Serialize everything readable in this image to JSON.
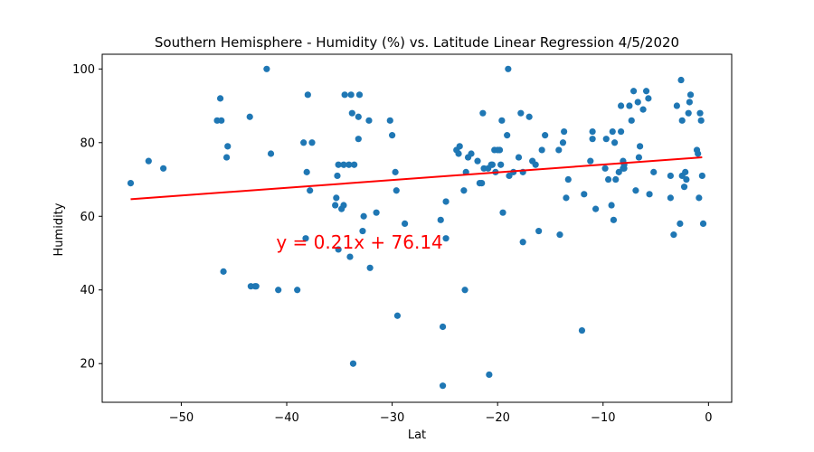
{
  "chart_data": {
    "type": "scatter",
    "title": "Southern Hemisphere - Humidity (%) vs. Latitude Linear Regression 4/5/2020",
    "xlabel": "Lat",
    "ylabel": "Humidity",
    "xlim": [
      -57.5,
      2.2
    ],
    "ylim": [
      9.5,
      104
    ],
    "xticks": [
      -50,
      -40,
      -30,
      -20,
      -10,
      0
    ],
    "yticks": [
      20,
      40,
      60,
      80,
      100
    ],
    "grid": false,
    "point_color": "#1f77b4",
    "line_color": "#ff0000",
    "annotation_color": "#ff0000",
    "regression": {
      "slope": 0.21,
      "intercept": 76.14,
      "x_range": [
        -54.8,
        -0.6
      ]
    },
    "annotation": {
      "text": "y = 0.21x + 76.14",
      "x": -41,
      "y": 53
    },
    "points": [
      [
        -54.8,
        69
      ],
      [
        -53.1,
        75
      ],
      [
        -51.7,
        73
      ],
      [
        -46.6,
        86
      ],
      [
        -46.3,
        92
      ],
      [
        -46.2,
        86
      ],
      [
        -46.0,
        45
      ],
      [
        -45.7,
        76
      ],
      [
        -45.6,
        79
      ],
      [
        -43.5,
        87
      ],
      [
        -43.4,
        41
      ],
      [
        -43.0,
        41
      ],
      [
        -42.9,
        41
      ],
      [
        -41.9,
        100
      ],
      [
        -41.5,
        77
      ],
      [
        -40.8,
        40
      ],
      [
        -39.0,
        40
      ],
      [
        -38.4,
        80
      ],
      [
        -38.2,
        54
      ],
      [
        -38.1,
        72
      ],
      [
        -38.0,
        93
      ],
      [
        -37.8,
        67
      ],
      [
        -37.6,
        80
      ],
      [
        -35.4,
        63
      ],
      [
        -35.3,
        65
      ],
      [
        -35.2,
        71
      ],
      [
        -35.1,
        74
      ],
      [
        -35.1,
        51
      ],
      [
        -34.8,
        62
      ],
      [
        -34.6,
        74
      ],
      [
        -34.5,
        93
      ],
      [
        -34.6,
        63
      ],
      [
        -34.1,
        74
      ],
      [
        -34.0,
        49
      ],
      [
        -33.9,
        93
      ],
      [
        -33.8,
        88
      ],
      [
        -33.7,
        20
      ],
      [
        -33.6,
        74
      ],
      [
        -33.2,
        87
      ],
      [
        -33.2,
        81
      ],
      [
        -33.1,
        93
      ],
      [
        -32.8,
        56
      ],
      [
        -32.7,
        60
      ],
      [
        -32.2,
        86
      ],
      [
        -32.1,
        46
      ],
      [
        -31.5,
        61
      ],
      [
        -30.2,
        86
      ],
      [
        -30.0,
        82
      ],
      [
        -29.7,
        72
      ],
      [
        -29.6,
        67
      ],
      [
        -29.5,
        33
      ],
      [
        -28.8,
        58
      ],
      [
        -25.4,
        59
      ],
      [
        -25.2,
        14
      ],
      [
        -25.2,
        30
      ],
      [
        -24.9,
        64
      ],
      [
        -24.9,
        54
      ],
      [
        -23.9,
        78
      ],
      [
        -23.7,
        77
      ],
      [
        -23.6,
        79
      ],
      [
        -23.2,
        67
      ],
      [
        -23.1,
        40
      ],
      [
        -23.0,
        72
      ],
      [
        -22.8,
        76
      ],
      [
        -22.5,
        77
      ],
      [
        -21.9,
        75
      ],
      [
        -21.7,
        69
      ],
      [
        -21.5,
        69
      ],
      [
        -21.4,
        88
      ],
      [
        -21.3,
        73
      ],
      [
        -20.9,
        73
      ],
      [
        -20.8,
        17
      ],
      [
        -20.6,
        74
      ],
      [
        -20.5,
        74
      ],
      [
        -20.3,
        78
      ],
      [
        -20.2,
        72
      ],
      [
        -20.0,
        78
      ],
      [
        -19.8,
        78
      ],
      [
        -19.7,
        74
      ],
      [
        -19.6,
        86
      ],
      [
        -19.5,
        61
      ],
      [
        -19.1,
        82
      ],
      [
        -19.0,
        100
      ],
      [
        -18.9,
        71
      ],
      [
        -18.5,
        72
      ],
      [
        -18.0,
        76
      ],
      [
        -17.8,
        88
      ],
      [
        -17.6,
        53
      ],
      [
        -17.6,
        72
      ],
      [
        -17.0,
        87
      ],
      [
        -16.7,
        75
      ],
      [
        -16.4,
        74
      ],
      [
        -16.1,
        56
      ],
      [
        -15.8,
        78
      ],
      [
        -15.5,
        82
      ],
      [
        -14.2,
        78
      ],
      [
        -14.1,
        55
      ],
      [
        -13.8,
        80
      ],
      [
        -13.7,
        83
      ],
      [
        -13.5,
        65
      ],
      [
        -13.3,
        70
      ],
      [
        -12.0,
        29
      ],
      [
        -11.8,
        66
      ],
      [
        -11.2,
        75
      ],
      [
        -11.0,
        81
      ],
      [
        -11.0,
        83
      ],
      [
        -10.7,
        62
      ],
      [
        -9.8,
        73
      ],
      [
        -9.7,
        81
      ],
      [
        -9.5,
        70
      ],
      [
        -9.2,
        63
      ],
      [
        -9.1,
        83
      ],
      [
        -9.0,
        59
      ],
      [
        -8.9,
        80
      ],
      [
        -8.8,
        70
      ],
      [
        -8.5,
        72
      ],
      [
        -8.3,
        83
      ],
      [
        -8.3,
        90
      ],
      [
        -8.1,
        73
      ],
      [
        -8.1,
        75
      ],
      [
        -8.0,
        74
      ],
      [
        -8.0,
        73
      ],
      [
        -7.5,
        90
      ],
      [
        -7.3,
        86
      ],
      [
        -7.1,
        94
      ],
      [
        -6.9,
        67
      ],
      [
        -6.7,
        91
      ],
      [
        -6.6,
        76
      ],
      [
        -6.5,
        79
      ],
      [
        -6.2,
        89
      ],
      [
        -5.9,
        94
      ],
      [
        -5.7,
        92
      ],
      [
        -5.6,
        66
      ],
      [
        -5.2,
        72
      ],
      [
        -3.6,
        71
      ],
      [
        -3.6,
        65
      ],
      [
        -3.3,
        55
      ],
      [
        -3.0,
        90
      ],
      [
        -2.7,
        58
      ],
      [
        -2.6,
        97
      ],
      [
        -2.5,
        86
      ],
      [
        -2.5,
        71
      ],
      [
        -2.3,
        68
      ],
      [
        -2.2,
        72
      ],
      [
        -2.1,
        70
      ],
      [
        -1.9,
        88
      ],
      [
        -1.8,
        91
      ],
      [
        -1.7,
        93
      ],
      [
        -1.1,
        78
      ],
      [
        -1.0,
        77
      ],
      [
        -0.9,
        65
      ],
      [
        -0.8,
        88
      ],
      [
        -0.7,
        86
      ],
      [
        -0.6,
        71
      ],
      [
        -0.5,
        58
      ]
    ]
  }
}
